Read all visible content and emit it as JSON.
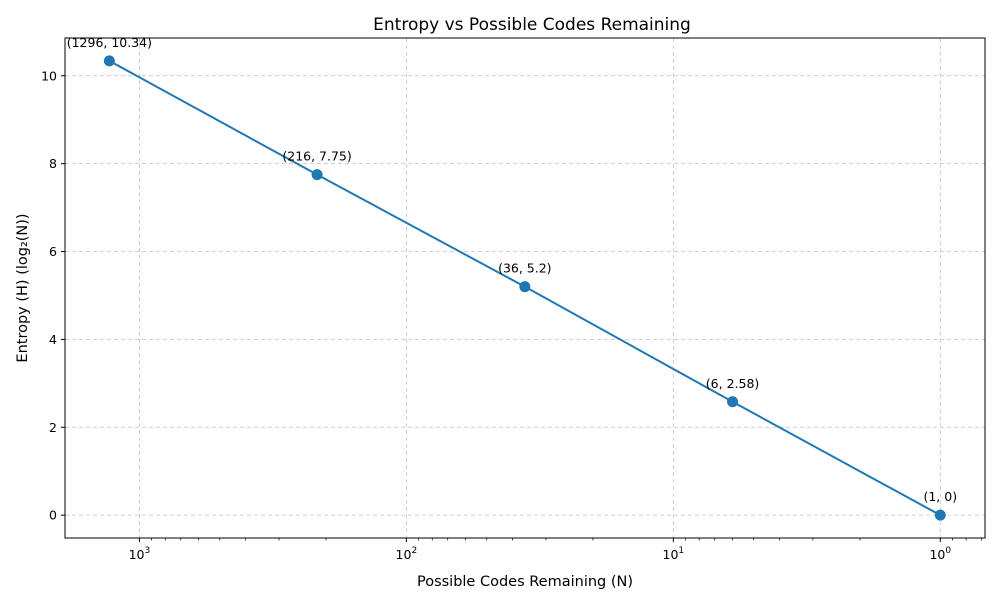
{
  "chart_data": {
    "type": "line",
    "title": "Entropy vs Possible Codes Remaining",
    "xlabel": "Possible Codes Remaining (N)",
    "ylabel": "Entropy (H) (log₂(N))",
    "x_scale": "log",
    "x_inverted": true,
    "xlim": [
      1900,
      0.68
    ],
    "ylim": [
      -0.52,
      10.86
    ],
    "x_ticks": [
      {
        "value": 1000,
        "base": "10",
        "exp": "3"
      },
      {
        "value": 100,
        "base": "10",
        "exp": "2"
      },
      {
        "value": 10,
        "base": "10",
        "exp": "1"
      },
      {
        "value": 1,
        "base": "10",
        "exp": "0"
      }
    ],
    "y_ticks": [
      {
        "value": 0,
        "label": "0"
      },
      {
        "value": 2,
        "label": "2"
      },
      {
        "value": 4,
        "label": "4"
      },
      {
        "value": 6,
        "label": "6"
      },
      {
        "value": 8,
        "label": "8"
      },
      {
        "value": 10,
        "label": "10"
      }
    ],
    "grid": true,
    "color": "#1f77b4",
    "series": [
      {
        "points": [
          {
            "x": 1296,
            "y": 10.34,
            "label": "(1296, 10.34)"
          },
          {
            "x": 216,
            "y": 7.75,
            "label": "(216, 7.75)"
          },
          {
            "x": 36,
            "y": 5.2,
            "label": "(36, 5.2)"
          },
          {
            "x": 6,
            "y": 2.58,
            "label": "(6, 2.58)"
          },
          {
            "x": 1,
            "y": 0,
            "label": "(1, 0)"
          }
        ]
      }
    ]
  }
}
